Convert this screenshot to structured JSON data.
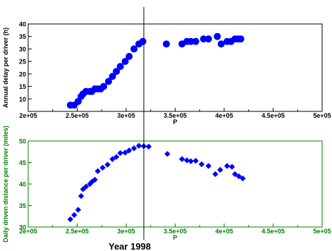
{
  "chart_data": [
    {
      "type": "scatter",
      "ylabel": "Annual delay per driver (h)",
      "xlabel": "P",
      "xlim": [
        200000,
        500000
      ],
      "ylim": [
        5,
        40
      ],
      "xticks": [
        200000,
        250000,
        300000,
        350000,
        400000,
        450000,
        500000
      ],
      "xtick_labels": [
        "2e+05",
        "2.5e+05",
        "3e+05",
        "3.5e+05",
        "4e+05",
        "4.5e+05",
        "5e+05"
      ],
      "yticks": [
        10,
        15,
        20,
        25,
        30,
        35,
        40
      ],
      "ytick_labels": [
        "10",
        "15",
        "20",
        "25",
        "30",
        "35",
        "40"
      ],
      "marker": "circle",
      "color": "#0000ff",
      "axis_color": "#000000",
      "grid": false,
      "points": [
        [
          243000,
          7.5
        ],
        [
          247000,
          7.5
        ],
        [
          251000,
          9
        ],
        [
          254000,
          11
        ],
        [
          256000,
          12
        ],
        [
          259000,
          13
        ],
        [
          263000,
          13
        ],
        [
          265000,
          13
        ],
        [
          268000,
          14
        ],
        [
          271000,
          14
        ],
        [
          274000,
          14
        ],
        [
          277000,
          15
        ],
        [
          282000,
          17
        ],
        [
          286000,
          19
        ],
        [
          290000,
          21
        ],
        [
          294000,
          23
        ],
        [
          299000,
          25
        ],
        [
          303000,
          27
        ],
        [
          308000,
          30
        ],
        [
          313000,
          32
        ],
        [
          317000,
          33
        ],
        [
          341000,
          32
        ],
        [
          357000,
          32
        ],
        [
          362000,
          33
        ],
        [
          366000,
          33
        ],
        [
          371000,
          33
        ],
        [
          379000,
          34
        ],
        [
          384000,
          34
        ],
        [
          393000,
          35
        ],
        [
          397000,
          32
        ],
        [
          403000,
          33
        ],
        [
          407000,
          33
        ],
        [
          411000,
          34
        ],
        [
          414000,
          34
        ],
        [
          417000,
          34
        ]
      ]
    },
    {
      "type": "scatter",
      "ylabel": "Daily driven distance per driver (miles)",
      "xlabel": "P",
      "xlim": [
        200000,
        500000
      ],
      "ylim": [
        30,
        50
      ],
      "xticks": [
        200000,
        250000,
        300000,
        350000,
        400000,
        450000,
        500000
      ],
      "xtick_labels": [
        "2e+05",
        "2.5e+05",
        "3e+05",
        "3.5e+05",
        "4e+05",
        "4.5e+05",
        "5e+05"
      ],
      "yticks": [
        30,
        35,
        40,
        45,
        50
      ],
      "ytick_labels": [
        "30",
        "35",
        "40",
        "45",
        "50"
      ],
      "marker": "diamond",
      "color": "#0000ff",
      "axis_color": "#008000",
      "grid": false,
      "points": [
        [
          243000,
          31.8
        ],
        [
          247000,
          32.8
        ],
        [
          251000,
          34
        ],
        [
          254000,
          37.2
        ],
        [
          256000,
          38.8
        ],
        [
          259000,
          39.4
        ],
        [
          263000,
          40
        ],
        [
          265000,
          40.5
        ],
        [
          268000,
          41
        ],
        [
          271000,
          43
        ],
        [
          276000,
          43.8
        ],
        [
          281000,
          44.5
        ],
        [
          286000,
          45.8
        ],
        [
          290000,
          46.3
        ],
        [
          294000,
          47.2
        ],
        [
          299000,
          47.3
        ],
        [
          303000,
          47.8
        ],
        [
          308000,
          48.3
        ],
        [
          313000,
          48.9
        ],
        [
          318000,
          48.8
        ],
        [
          323000,
          48.7
        ],
        [
          342000,
          47
        ],
        [
          357000,
          45.8
        ],
        [
          362000,
          45.5
        ],
        [
          366000,
          45.3
        ],
        [
          371000,
          45.4
        ],
        [
          377000,
          44.6
        ],
        [
          384000,
          44.2
        ],
        [
          391000,
          42.3
        ],
        [
          396000,
          43.3
        ],
        [
          403000,
          44.2
        ],
        [
          408000,
          44
        ],
        [
          411000,
          42.3
        ],
        [
          415000,
          41.8
        ],
        [
          419000,
          41.3
        ]
      ]
    }
  ],
  "annotation": {
    "label": "Year 1998",
    "x": 318000
  }
}
